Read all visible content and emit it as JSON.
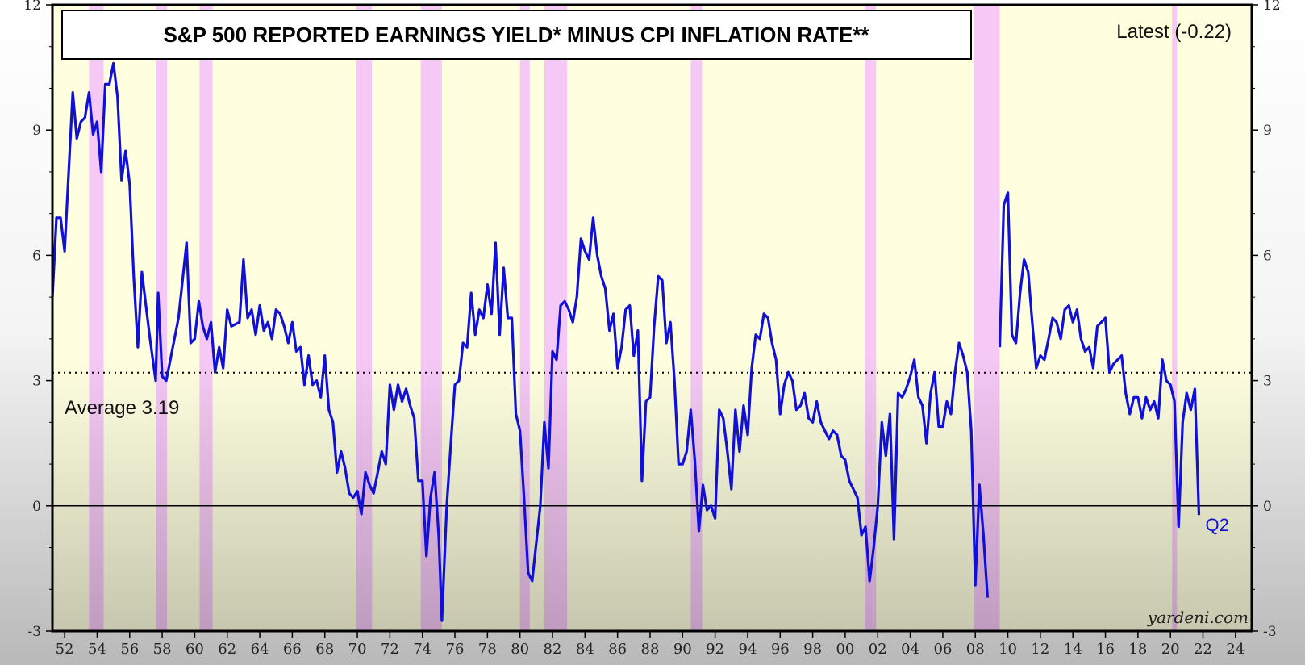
{
  "chart_data": {
    "type": "line",
    "title": "S&P 500 REPORTED EARNINGS YIELD* MINUS CPI INFLATION RATE**",
    "latest_label": "Latest (-0.22)",
    "average_label": "Average 3.19",
    "average_value": 3.19,
    "end_label": "Q2",
    "source": "yardeni.com",
    "xlabel": "",
    "ylabel": "",
    "xlim": [
      1951.25,
      2025.0
    ],
    "ylim": [
      -3,
      12
    ],
    "y_ticks": [
      -3,
      0,
      3,
      6,
      9,
      12
    ],
    "x_ticks": [
      1952,
      1954,
      1956,
      1958,
      1960,
      1962,
      1964,
      1966,
      1968,
      1970,
      1972,
      1974,
      1976,
      1978,
      1980,
      1982,
      1984,
      1986,
      1988,
      1990,
      1992,
      1994,
      1996,
      1998,
      2000,
      2002,
      2004,
      2006,
      2008,
      2010,
      2012,
      2014,
      2016,
      2018,
      2020,
      2022,
      2024
    ],
    "x_tick_labels": [
      "52",
      "54",
      "56",
      "58",
      "60",
      "62",
      "64",
      "66",
      "68",
      "70",
      "72",
      "74",
      "76",
      "78",
      "80",
      "82",
      "84",
      "86",
      "88",
      "90",
      "92",
      "94",
      "96",
      "98",
      "00",
      "02",
      "04",
      "06",
      "08",
      "10",
      "12",
      "14",
      "16",
      "18",
      "20",
      "22",
      "24"
    ],
    "grid": false,
    "line_color": "#1010d8",
    "background_color": "#ffffe0",
    "recession_color": "#f5c8f5",
    "recessions": [
      [
        1953.5,
        1954.4
      ],
      [
        1957.6,
        1958.3
      ],
      [
        1960.3,
        1961.1
      ],
      [
        1969.9,
        1970.9
      ],
      [
        1973.9,
        1975.2
      ],
      [
        1980.0,
        1980.6
      ],
      [
        1981.5,
        1982.9
      ],
      [
        1990.5,
        1991.2
      ],
      [
        2001.2,
        2001.9
      ],
      [
        2007.9,
        2009.5
      ],
      [
        2020.1,
        2020.4
      ]
    ],
    "series": [
      {
        "points": [
          [
            1951.25,
            5.0
          ],
          [
            1951.5,
            6.9
          ],
          [
            1951.75,
            6.9
          ],
          [
            1952.0,
            6.1
          ],
          [
            1952.5,
            9.9
          ],
          [
            1952.75,
            8.8
          ],
          [
            1953.0,
            9.2
          ],
          [
            1953.25,
            9.3
          ],
          [
            1953.5,
            9.9
          ],
          [
            1953.75,
            8.9
          ],
          [
            1954.0,
            9.2
          ],
          [
            1954.25,
            8.0
          ],
          [
            1954.5,
            10.1
          ],
          [
            1954.75,
            10.1
          ],
          [
            1955.0,
            10.6
          ],
          [
            1955.25,
            9.8
          ],
          [
            1955.5,
            7.8
          ],
          [
            1955.75,
            8.5
          ],
          [
            1956.0,
            7.7
          ],
          [
            1956.25,
            5.5
          ],
          [
            1956.5,
            3.8
          ],
          [
            1956.75,
            5.6
          ],
          [
            1957.0,
            4.8
          ],
          [
            1957.25,
            4.0
          ],
          [
            1957.6,
            3.0
          ],
          [
            1957.75,
            5.1
          ],
          [
            1958.0,
            3.1
          ],
          [
            1958.25,
            3.0
          ],
          [
            1958.5,
            3.5
          ],
          [
            1959.0,
            4.5
          ],
          [
            1959.5,
            6.3
          ],
          [
            1959.75,
            3.9
          ],
          [
            1960.0,
            4.0
          ],
          [
            1960.25,
            4.9
          ],
          [
            1960.5,
            4.3
          ],
          [
            1960.75,
            4.0
          ],
          [
            1961.0,
            4.4
          ],
          [
            1961.25,
            3.2
          ],
          [
            1961.5,
            3.8
          ],
          [
            1961.75,
            3.3
          ],
          [
            1962.0,
            4.7
          ],
          [
            1962.25,
            4.3
          ],
          [
            1962.75,
            4.4
          ],
          [
            1963.0,
            5.9
          ],
          [
            1963.25,
            4.5
          ],
          [
            1963.5,
            4.7
          ],
          [
            1963.75,
            4.1
          ],
          [
            1964.0,
            4.8
          ],
          [
            1964.25,
            4.2
          ],
          [
            1964.5,
            4.4
          ],
          [
            1964.75,
            4.0
          ],
          [
            1965.0,
            4.7
          ],
          [
            1965.25,
            4.6
          ],
          [
            1965.5,
            4.3
          ],
          [
            1965.75,
            3.9
          ],
          [
            1966.0,
            4.4
          ],
          [
            1966.25,
            3.7
          ],
          [
            1966.5,
            3.8
          ],
          [
            1966.75,
            2.9
          ],
          [
            1967.0,
            3.6
          ],
          [
            1967.25,
            2.9
          ],
          [
            1967.5,
            3.0
          ],
          [
            1967.75,
            2.6
          ],
          [
            1968.0,
            3.6
          ],
          [
            1968.25,
            2.3
          ],
          [
            1968.5,
            2.0
          ],
          [
            1968.75,
            0.8
          ],
          [
            1969.0,
            1.3
          ],
          [
            1969.25,
            0.9
          ],
          [
            1969.5,
            0.3
          ],
          [
            1969.75,
            0.2
          ],
          [
            1970.0,
            0.35
          ],
          [
            1970.25,
            -0.2
          ],
          [
            1970.5,
            0.8
          ],
          [
            1970.75,
            0.5
          ],
          [
            1971.0,
            0.3
          ],
          [
            1971.25,
            0.8
          ],
          [
            1971.5,
            1.3
          ],
          [
            1971.75,
            1.0
          ],
          [
            1972.0,
            2.9
          ],
          [
            1972.25,
            2.3
          ],
          [
            1972.5,
            2.9
          ],
          [
            1972.75,
            2.5
          ],
          [
            1973.0,
            2.8
          ],
          [
            1973.25,
            2.4
          ],
          [
            1973.5,
            2.1
          ],
          [
            1973.75,
            0.6
          ],
          [
            1974.0,
            0.6
          ],
          [
            1974.25,
            -1.2
          ],
          [
            1974.5,
            0.2
          ],
          [
            1974.75,
            0.8
          ],
          [
            1975.0,
            -0.7
          ],
          [
            1975.2,
            -2.75
          ],
          [
            1975.5,
            0.0
          ],
          [
            1975.75,
            1.5
          ],
          [
            1976.0,
            2.9
          ],
          [
            1976.25,
            3.0
          ],
          [
            1976.5,
            3.9
          ],
          [
            1976.75,
            3.8
          ],
          [
            1977.0,
            5.1
          ],
          [
            1977.25,
            4.1
          ],
          [
            1977.5,
            4.7
          ],
          [
            1977.75,
            4.5
          ],
          [
            1978.0,
            5.3
          ],
          [
            1978.25,
            4.6
          ],
          [
            1978.5,
            6.3
          ],
          [
            1978.75,
            4.1
          ],
          [
            1979.0,
            5.7
          ],
          [
            1979.25,
            4.5
          ],
          [
            1979.5,
            4.5
          ],
          [
            1979.75,
            2.2
          ],
          [
            1980.0,
            1.8
          ],
          [
            1980.25,
            0.2
          ],
          [
            1980.5,
            -1.6
          ],
          [
            1980.75,
            -1.8
          ],
          [
            1981.0,
            -0.9
          ],
          [
            1981.25,
            0.0
          ],
          [
            1981.5,
            2.0
          ],
          [
            1981.75,
            0.9
          ],
          [
            1982.0,
            3.7
          ],
          [
            1982.25,
            3.5
          ],
          [
            1982.5,
            4.8
          ],
          [
            1982.75,
            4.9
          ],
          [
            1983.0,
            4.7
          ],
          [
            1983.25,
            4.4
          ],
          [
            1983.5,
            5.0
          ],
          [
            1983.75,
            6.4
          ],
          [
            1984.0,
            6.1
          ],
          [
            1984.25,
            5.9
          ],
          [
            1984.5,
            6.9
          ],
          [
            1984.75,
            6.0
          ],
          [
            1985.0,
            5.5
          ],
          [
            1985.25,
            5.2
          ],
          [
            1985.5,
            4.2
          ],
          [
            1985.75,
            4.6
          ],
          [
            1986.0,
            3.3
          ],
          [
            1986.25,
            3.8
          ],
          [
            1986.5,
            4.7
          ],
          [
            1986.75,
            4.8
          ],
          [
            1987.0,
            3.6
          ],
          [
            1987.25,
            4.2
          ],
          [
            1987.5,
            0.6
          ],
          [
            1987.75,
            2.5
          ],
          [
            1988.0,
            2.6
          ],
          [
            1988.25,
            4.3
          ],
          [
            1988.5,
            5.5
          ],
          [
            1988.75,
            5.4
          ],
          [
            1989.0,
            3.9
          ],
          [
            1989.25,
            4.4
          ],
          [
            1989.5,
            3.0
          ],
          [
            1989.75,
            1.0
          ],
          [
            1990.0,
            1.0
          ],
          [
            1990.25,
            1.3
          ],
          [
            1990.5,
            2.3
          ],
          [
            1990.75,
            1.1
          ],
          [
            1991.0,
            -0.6
          ],
          [
            1991.25,
            0.5
          ],
          [
            1991.5,
            -0.1
          ],
          [
            1991.75,
            0.0
          ],
          [
            1992.0,
            -0.3
          ],
          [
            1992.25,
            2.3
          ],
          [
            1992.5,
            2.1
          ],
          [
            1992.75,
            1.3
          ],
          [
            1993.0,
            0.4
          ],
          [
            1993.25,
            2.3
          ],
          [
            1993.5,
            1.3
          ],
          [
            1993.75,
            2.4
          ],
          [
            1994.0,
            1.7
          ],
          [
            1994.25,
            3.3
          ],
          [
            1994.5,
            4.1
          ],
          [
            1994.75,
            4.0
          ],
          [
            1995.0,
            4.6
          ],
          [
            1995.25,
            4.5
          ],
          [
            1995.5,
            3.9
          ],
          [
            1995.75,
            3.5
          ],
          [
            1996.0,
            2.2
          ],
          [
            1996.25,
            2.9
          ],
          [
            1996.5,
            3.2
          ],
          [
            1996.75,
            3.0
          ],
          [
            1997.0,
            2.3
          ],
          [
            1997.25,
            2.4
          ],
          [
            1997.5,
            2.7
          ],
          [
            1997.75,
            2.1
          ],
          [
            1998.0,
            2.0
          ],
          [
            1998.25,
            2.5
          ],
          [
            1998.5,
            2.0
          ],
          [
            1998.75,
            1.8
          ],
          [
            1999.0,
            1.6
          ],
          [
            1999.25,
            1.8
          ],
          [
            1999.5,
            1.7
          ],
          [
            1999.75,
            1.2
          ],
          [
            2000.0,
            1.1
          ],
          [
            2000.25,
            0.6
          ],
          [
            2000.5,
            0.4
          ],
          [
            2000.75,
            0.2
          ],
          [
            2001.0,
            -0.7
          ],
          [
            2001.25,
            -0.5
          ],
          [
            2001.5,
            -1.8
          ],
          [
            2001.75,
            -1.0
          ],
          [
            2002.0,
            0.0
          ],
          [
            2002.25,
            2.0
          ],
          [
            2002.5,
            1.2
          ],
          [
            2002.75,
            2.2
          ],
          [
            2003.0,
            -0.8
          ],
          [
            2003.25,
            2.7
          ],
          [
            2003.5,
            2.6
          ],
          [
            2003.75,
            2.8
          ],
          [
            2004.0,
            3.1
          ],
          [
            2004.25,
            3.5
          ],
          [
            2004.5,
            2.6
          ],
          [
            2004.75,
            2.4
          ],
          [
            2005.0,
            1.5
          ],
          [
            2005.25,
            2.7
          ],
          [
            2005.5,
            3.2
          ],
          [
            2005.75,
            1.9
          ],
          [
            2006.0,
            1.9
          ],
          [
            2006.25,
            2.5
          ],
          [
            2006.5,
            2.2
          ],
          [
            2006.75,
            3.2
          ],
          [
            2007.0,
            3.9
          ],
          [
            2007.25,
            3.6
          ],
          [
            2007.5,
            3.2
          ],
          [
            2007.75,
            1.8
          ],
          [
            2008.0,
            -1.9
          ],
          [
            2008.25,
            0.5
          ],
          [
            2008.5,
            -0.7
          ],
          [
            2008.75,
            -2.2
          ],
          [
            null,
            null
          ],
          [
            2009.5,
            3.8
          ],
          [
            2009.75,
            7.2
          ],
          [
            2010.0,
            7.5
          ],
          [
            2010.25,
            4.1
          ],
          [
            2010.5,
            3.9
          ],
          [
            2010.75,
            5.1
          ],
          [
            2011.0,
            5.9
          ],
          [
            2011.25,
            5.6
          ],
          [
            2011.5,
            4.4
          ],
          [
            2011.75,
            3.3
          ],
          [
            2012.0,
            3.6
          ],
          [
            2012.25,
            3.5
          ],
          [
            2012.5,
            4.0
          ],
          [
            2012.75,
            4.5
          ],
          [
            2013.0,
            4.4
          ],
          [
            2013.25,
            4.0
          ],
          [
            2013.5,
            4.7
          ],
          [
            2013.75,
            4.8
          ],
          [
            2014.0,
            4.4
          ],
          [
            2014.25,
            4.7
          ],
          [
            2014.5,
            4.0
          ],
          [
            2014.75,
            3.7
          ],
          [
            2015.0,
            3.8
          ],
          [
            2015.25,
            3.3
          ],
          [
            2015.5,
            4.3
          ],
          [
            2015.75,
            4.4
          ],
          [
            2016.0,
            4.5
          ],
          [
            2016.25,
            3.2
          ],
          [
            2016.5,
            3.4
          ],
          [
            2016.75,
            3.5
          ],
          [
            2017.0,
            3.6
          ],
          [
            2017.25,
            2.7
          ],
          [
            2017.5,
            2.2
          ],
          [
            2017.75,
            2.6
          ],
          [
            2018.0,
            2.6
          ],
          [
            2018.25,
            2.1
          ],
          [
            2018.5,
            2.6
          ],
          [
            2018.75,
            2.3
          ],
          [
            2019.0,
            2.5
          ],
          [
            2019.25,
            2.1
          ],
          [
            2019.5,
            3.5
          ],
          [
            2019.75,
            3.0
          ],
          [
            2020.0,
            2.9
          ],
          [
            2020.25,
            2.5
          ],
          [
            2020.5,
            -0.5
          ],
          [
            2020.75,
            2.0
          ],
          [
            2021.0,
            2.7
          ],
          [
            2021.25,
            2.3
          ],
          [
            2021.5,
            2.8
          ],
          [
            2021.75,
            -0.22
          ]
        ]
      }
    ]
  }
}
